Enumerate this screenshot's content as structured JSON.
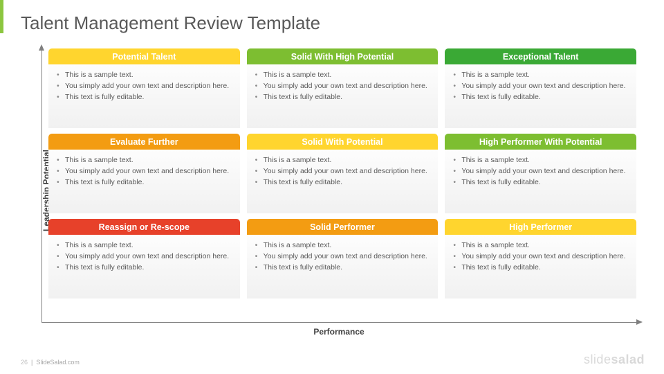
{
  "title": "Talent Management Review Template",
  "axes": {
    "y_label": "Leadership Potential",
    "x_label": "Performance",
    "axis_color": "#7f7f7f"
  },
  "colors": {
    "accent": "#8cc63f",
    "body_grad_top": "#fdfdfd",
    "body_grad_bottom": "#f1f1f1",
    "bullet_text": "#595959"
  },
  "grid": {
    "rows": 3,
    "cols": 3,
    "cells": [
      {
        "title": "Potential Talent",
        "header_color": "#ffd52e",
        "bullets": [
          "This is a sample text.",
          "You simply add your own text and description here.",
          "This text is fully editable."
        ]
      },
      {
        "title": "Solid With High Potential",
        "header_color": "#7dbe31",
        "bullets": [
          "This is a sample text.",
          "You simply add your own text and description here.",
          "This text is fully editable."
        ]
      },
      {
        "title": "Exceptional Talent",
        "header_color": "#3aa935",
        "bullets": [
          "This is a sample text.",
          "You simply add your own text and description here.",
          "This text is fully editable."
        ]
      },
      {
        "title": "Evaluate Further",
        "header_color": "#f39c12",
        "bullets": [
          "This is a sample text.",
          "You simply add your own text and description here.",
          "This text is fully editable."
        ]
      },
      {
        "title": "Solid With Potential",
        "header_color": "#ffd52e",
        "bullets": [
          "This is a sample text.",
          "You simply add your own text and description here.",
          "This text is fully editable."
        ]
      },
      {
        "title": "High Performer With Potential",
        "header_color": "#7dbe31",
        "bullets": [
          "This is a sample text.",
          "You simply add your own text and description here.",
          "This text is fully editable."
        ]
      },
      {
        "title": "Reassign or Re-scope",
        "header_color": "#e7412a",
        "bullets": [
          "This is a sample text.",
          "You simply add your own text and description here.",
          "This text is fully editable."
        ]
      },
      {
        "title": "Solid Performer",
        "header_color": "#f39c12",
        "bullets": [
          "This is a sample text.",
          "You simply add your own text and description here.",
          "This text is fully editable."
        ]
      },
      {
        "title": "High Performer",
        "header_color": "#ffd52e",
        "bullets": [
          "This is a sample text.",
          "You simply add your own text and description here.",
          "This text is fully editable."
        ]
      }
    ]
  },
  "footer": {
    "page_number": "26",
    "source": "SlideSalad.com"
  },
  "logo": {
    "part1": "slide",
    "part2": "salad"
  }
}
